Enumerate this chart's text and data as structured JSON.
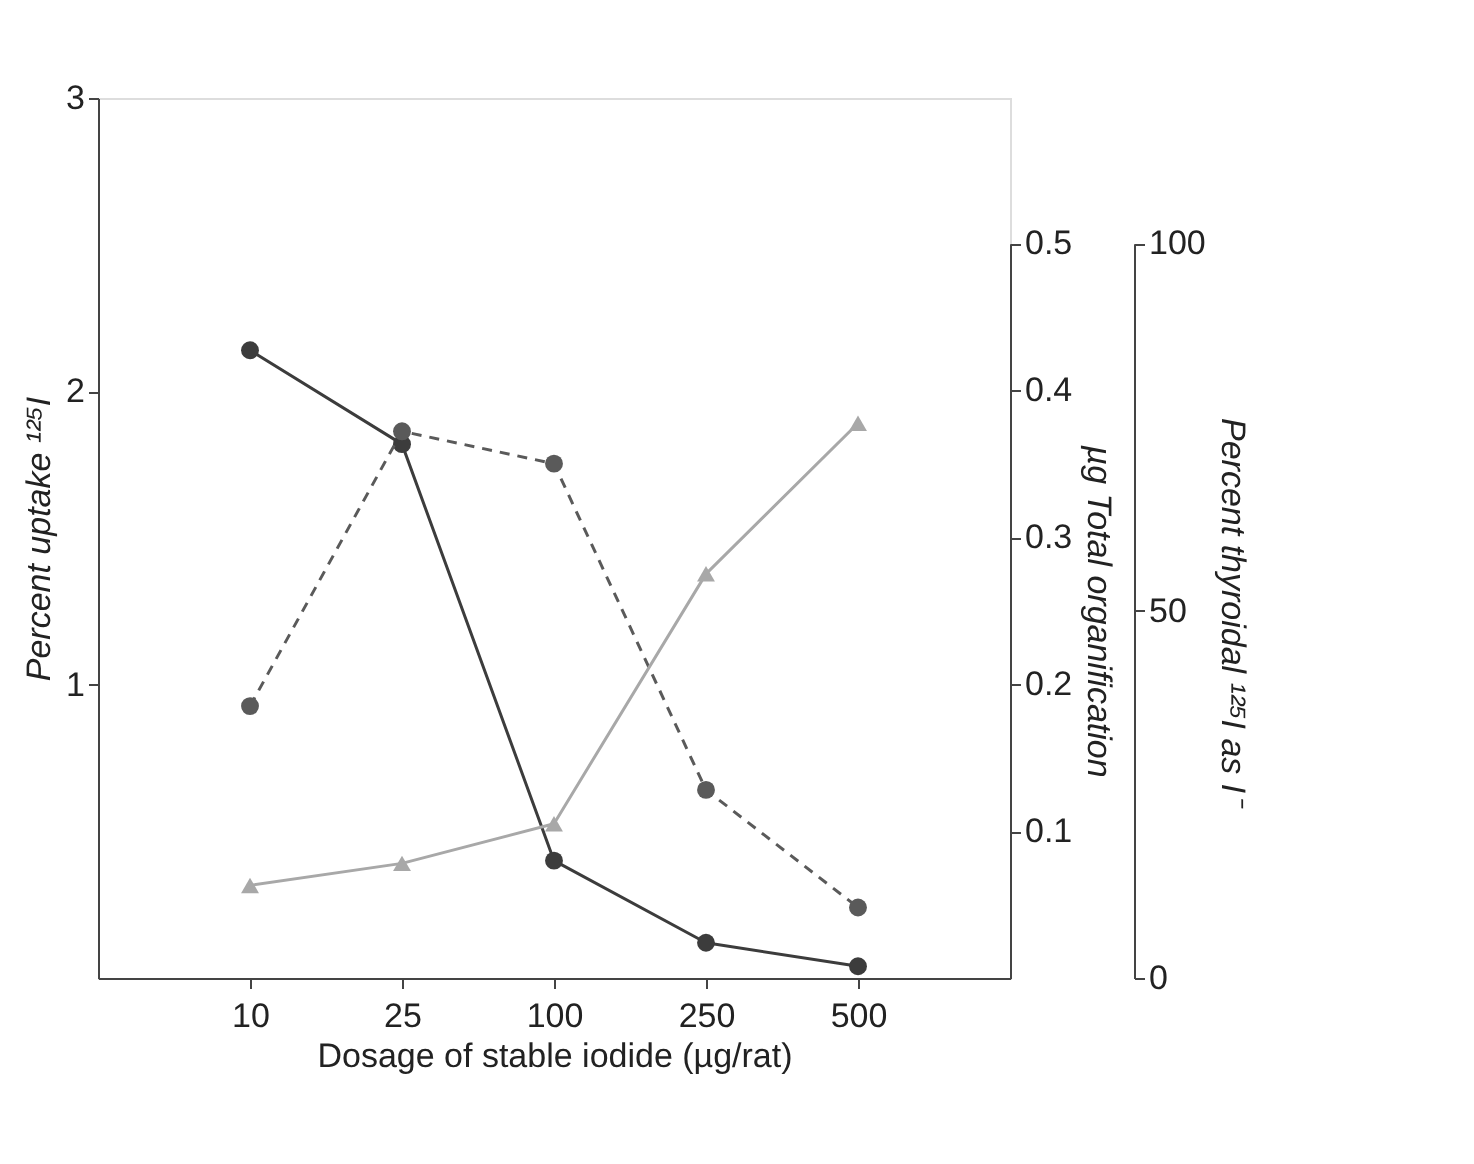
{
  "chart_data": {
    "type": "line",
    "xlabel": "Dosage of stable iodide (µg/rat)",
    "ylabel": "Percent uptake ¹²⁵I",
    "y2label": "µg Total organification",
    "y3label": "Percent thyroidal ¹²⁵I as I⁻",
    "categories": [
      "10",
      "25",
      "100",
      "250",
      "500"
    ],
    "ylim": [
      0,
      3
    ],
    "yticks": [
      1,
      2,
      3
    ],
    "y2lim": [
      0,
      0.5
    ],
    "y2ticks": [
      0.1,
      0.2,
      0.3,
      0.4,
      0.5
    ],
    "y3lim": [
      0,
      100
    ],
    "y3ticks": [
      0,
      50,
      100
    ],
    "grid": false,
    "series": [
      {
        "color": "#3c3c3c",
        "marker": "circle",
        "line_style": "solid",
        "axis": "y",
        "values": [
          2.14,
          1.82,
          0.4,
          0.12,
          0.04
        ]
      },
      {
        "color": "#5a5a5a",
        "marker": "circle",
        "line_style": "dashed",
        "axis": "y2",
        "values": [
          0.185,
          0.372,
          0.35,
          0.128,
          0.048
        ]
      },
      {
        "color": "#a8a8a8",
        "marker": "triangle",
        "line_style": "solid",
        "axis": "y3",
        "values": [
          12.6,
          15.6,
          21,
          55,
          75.5
        ]
      }
    ]
  }
}
